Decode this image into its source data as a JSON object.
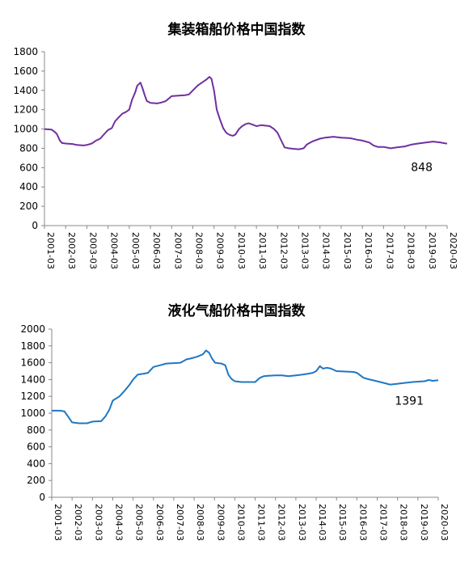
{
  "chart_data": [
    {
      "type": "line",
      "title": "集装箱船价格中国指数",
      "x": [
        "2001-03",
        "2002-03",
        "2003-03",
        "2004-03",
        "2005-03",
        "2006-03",
        "2007-03",
        "2008-03",
        "2009-03",
        "2010-03",
        "2011-03",
        "2012-03",
        "2013-03",
        "2014-03",
        "2015-03",
        "2016-03",
        "2017-03",
        "2018-03",
        "2019-03",
        "2020-03"
      ],
      "ylim": [
        0,
        1800
      ],
      "yticks": [
        0,
        200,
        400,
        600,
        800,
        1000,
        1200,
        1400,
        1600,
        1800
      ],
      "grid": false,
      "series": [
        {
          "color": "#7030A0",
          "points": [
            [
              2001.17,
              1000
            ],
            [
              2001.5,
              995
            ],
            [
              2001.65,
              970
            ],
            [
              2001.75,
              950
            ],
            [
              2001.9,
              880
            ],
            [
              2002.0,
              855
            ],
            [
              2002.17,
              850
            ],
            [
              2002.5,
              845
            ],
            [
              2002.7,
              835
            ],
            [
              2003.0,
              830
            ],
            [
              2003.17,
              835
            ],
            [
              2003.4,
              850
            ],
            [
              2003.6,
              880
            ],
            [
              2003.8,
              900
            ],
            [
              2004.0,
              950
            ],
            [
              2004.17,
              990
            ],
            [
              2004.35,
              1010
            ],
            [
              2004.5,
              1080
            ],
            [
              2004.67,
              1120
            ],
            [
              2004.85,
              1160
            ],
            [
              2005.0,
              1175
            ],
            [
              2005.17,
              1200
            ],
            [
              2005.3,
              1300
            ],
            [
              2005.45,
              1380
            ],
            [
              2005.55,
              1450
            ],
            [
              2005.7,
              1480
            ],
            [
              2005.8,
              1420
            ],
            [
              2005.9,
              1350
            ],
            [
              2006.0,
              1290
            ],
            [
              2006.17,
              1270
            ],
            [
              2006.5,
              1265
            ],
            [
              2006.7,
              1275
            ],
            [
              2006.9,
              1290
            ],
            [
              2007.17,
              1340
            ],
            [
              2007.5,
              1345
            ],
            [
              2007.8,
              1350
            ],
            [
              2008.0,
              1360
            ],
            [
              2008.17,
              1400
            ],
            [
              2008.4,
              1450
            ],
            [
              2008.6,
              1480
            ],
            [
              2008.8,
              1510
            ],
            [
              2008.95,
              1540
            ],
            [
              2009.05,
              1520
            ],
            [
              2009.17,
              1400
            ],
            [
              2009.3,
              1200
            ],
            [
              2009.45,
              1100
            ],
            [
              2009.6,
              1010
            ],
            [
              2009.75,
              960
            ],
            [
              2009.9,
              940
            ],
            [
              2010.05,
              930
            ],
            [
              2010.17,
              940
            ],
            [
              2010.35,
              1000
            ],
            [
              2010.5,
              1030
            ],
            [
              2010.65,
              1050
            ],
            [
              2010.8,
              1060
            ],
            [
              2011.0,
              1045
            ],
            [
              2011.17,
              1030
            ],
            [
              2011.4,
              1040
            ],
            [
              2011.6,
              1035
            ],
            [
              2011.8,
              1030
            ],
            [
              2012.0,
              1000
            ],
            [
              2012.17,
              960
            ],
            [
              2012.3,
              900
            ],
            [
              2012.5,
              810
            ],
            [
              2012.7,
              800
            ],
            [
              2012.9,
              795
            ],
            [
              2013.17,
              790
            ],
            [
              2013.4,
              800
            ],
            [
              2013.55,
              840
            ],
            [
              2013.8,
              870
            ],
            [
              2014.17,
              900
            ],
            [
              2014.4,
              910
            ],
            [
              2014.6,
              915
            ],
            [
              2014.8,
              920
            ],
            [
              2015.17,
              910
            ],
            [
              2015.6,
              905
            ],
            [
              2015.9,
              890
            ],
            [
              2016.17,
              880
            ],
            [
              2016.5,
              860
            ],
            [
              2016.7,
              830
            ],
            [
              2016.9,
              815
            ],
            [
              2017.17,
              815
            ],
            [
              2017.5,
              800
            ],
            [
              2017.8,
              810
            ],
            [
              2018.17,
              820
            ],
            [
              2018.5,
              840
            ],
            [
              2018.8,
              850
            ],
            [
              2019.17,
              860
            ],
            [
              2019.5,
              870
            ],
            [
              2019.8,
              862
            ],
            [
              2020.0,
              855
            ],
            [
              2020.17,
              848
            ]
          ]
        }
      ],
      "end_label": "848"
    },
    {
      "type": "line",
      "title": "液化气船价格中国指数",
      "x": [
        "2001-03",
        "2002-03",
        "2003-03",
        "2004-03",
        "2005-03",
        "2006-03",
        "2007-03",
        "2008-03",
        "2009-03",
        "2010-03",
        "2011-03",
        "2012-03",
        "2013-03",
        "2014-03",
        "2015-03",
        "2016-03",
        "2017-03",
        "2018-03",
        "2019-03",
        "2020-03"
      ],
      "ylim": [
        0,
        2000
      ],
      "yticks": [
        0,
        200,
        400,
        600,
        800,
        1000,
        1200,
        1400,
        1600,
        1800,
        2000
      ],
      "grid": false,
      "series": [
        {
          "color": "#1F77C4",
          "points": [
            [
              2001.17,
              1030
            ],
            [
              2001.6,
              1030
            ],
            [
              2001.8,
              1020
            ],
            [
              2002.0,
              950
            ],
            [
              2002.17,
              890
            ],
            [
              2002.5,
              880
            ],
            [
              2002.9,
              880
            ],
            [
              2003.17,
              900
            ],
            [
              2003.6,
              905
            ],
            [
              2003.8,
              960
            ],
            [
              2004.0,
              1040
            ],
            [
              2004.17,
              1150
            ],
            [
              2004.5,
              1200
            ],
            [
              2004.8,
              1280
            ],
            [
              2005.0,
              1340
            ],
            [
              2005.17,
              1400
            ],
            [
              2005.4,
              1460
            ],
            [
              2005.7,
              1470
            ],
            [
              2005.9,
              1480
            ],
            [
              2006.17,
              1550
            ],
            [
              2006.5,
              1570
            ],
            [
              2006.8,
              1590
            ],
            [
              2007.17,
              1595
            ],
            [
              2007.5,
              1600
            ],
            [
              2007.8,
              1640
            ],
            [
              2008.0,
              1650
            ],
            [
              2008.3,
              1670
            ],
            [
              2008.6,
              1700
            ],
            [
              2008.75,
              1745
            ],
            [
              2008.9,
              1720
            ],
            [
              2009.05,
              1650
            ],
            [
              2009.2,
              1600
            ],
            [
              2009.5,
              1590
            ],
            [
              2009.7,
              1570
            ],
            [
              2009.85,
              1460
            ],
            [
              2010.0,
              1410
            ],
            [
              2010.17,
              1380
            ],
            [
              2010.5,
              1370
            ],
            [
              2010.8,
              1370
            ],
            [
              2011.17,
              1370
            ],
            [
              2011.4,
              1420
            ],
            [
              2011.6,
              1440
            ],
            [
              2011.8,
              1445
            ],
            [
              2012.17,
              1450
            ],
            [
              2012.5,
              1450
            ],
            [
              2012.8,
              1440
            ],
            [
              2013.17,
              1450
            ],
            [
              2013.5,
              1460
            ],
            [
              2013.8,
              1470
            ],
            [
              2014.0,
              1480
            ],
            [
              2014.17,
              1500
            ],
            [
              2014.35,
              1560
            ],
            [
              2014.5,
              1530
            ],
            [
              2014.7,
              1540
            ],
            [
              2014.9,
              1530
            ],
            [
              2015.17,
              1500
            ],
            [
              2015.6,
              1495
            ],
            [
              2016.0,
              1490
            ],
            [
              2016.17,
              1480
            ],
            [
              2016.5,
              1420
            ],
            [
              2016.8,
              1400
            ],
            [
              2017.17,
              1380
            ],
            [
              2017.5,
              1360
            ],
            [
              2017.8,
              1340
            ],
            [
              2018.17,
              1350
            ],
            [
              2018.5,
              1360
            ],
            [
              2018.9,
              1370
            ],
            [
              2019.17,
              1375
            ],
            [
              2019.5,
              1380
            ],
            [
              2019.7,
              1395
            ],
            [
              2019.9,
              1385
            ],
            [
              2020.17,
              1391
            ]
          ]
        }
      ],
      "end_label": "1391"
    }
  ]
}
